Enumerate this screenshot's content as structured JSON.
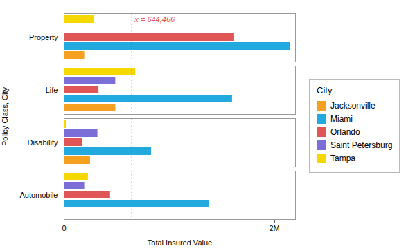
{
  "chart_data": {
    "type": "bar",
    "orientation": "horizontal",
    "categories": [
      "Automobile",
      "Disability",
      "Life",
      "Property"
    ],
    "series": [
      {
        "name": "Jacksonville",
        "color": "#F5A020",
        "values": [
          0,
          250000,
          490000,
          195000
        ]
      },
      {
        "name": "Miami",
        "color": "#22AADF",
        "values": [
          1380000,
          830000,
          1600000,
          2150000
        ]
      },
      {
        "name": "Orlando",
        "color": "#E05555",
        "values": [
          440000,
          175000,
          330000,
          1620000
        ]
      },
      {
        "name": "Saint Petersburg",
        "color": "#7B6ED6",
        "values": [
          195000,
          320000,
          490000,
          0
        ]
      },
      {
        "name": "Tampa",
        "color": "#F5D800",
        "values": [
          230000,
          20000,
          680000,
          290000
        ]
      }
    ],
    "xlabel": "Total Insured Value",
    "ylabel": "Policy Class, City",
    "xlim": [
      0,
      2200000
    ],
    "xticks": [
      0,
      {
        "value": 2000000,
        "label": "2M"
      }
    ],
    "grid": false,
    "legend": "right",
    "legend_title": "City",
    "annotations": [
      {
        "x": 644466,
        "text": "x̄ = 644,466",
        "color": "#E05555"
      }
    ]
  }
}
